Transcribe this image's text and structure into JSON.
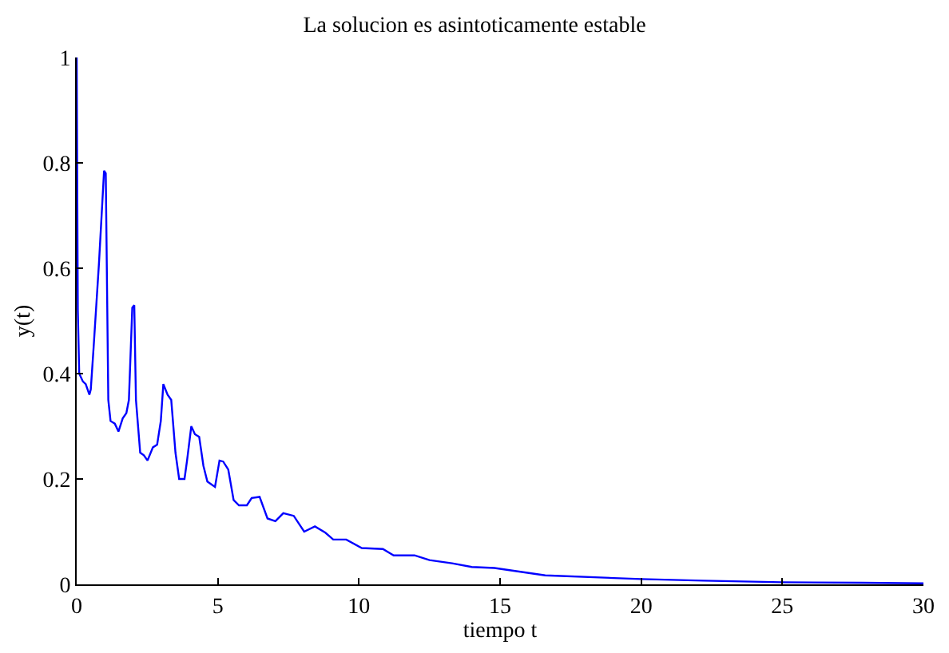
{
  "chart_data": {
    "type": "line",
    "title": "La solucion es asintoticamente estable",
    "xlabel": "tiempo t",
    "ylabel": "y(t)",
    "series": [
      {
        "color": "#0000ff",
        "x": [
          0,
          0.04,
          0.09,
          0.22,
          0.32,
          0.45,
          0.5,
          0.6,
          0.79,
          0.97,
          1.03,
          1.12,
          1.2,
          1.35,
          1.48,
          1.63,
          1.76,
          1.85,
          1.97,
          2.04,
          2.1,
          2.25,
          2.38,
          2.51,
          2.7,
          2.85,
          2.98,
          3.07,
          3.22,
          3.35,
          3.5,
          3.63,
          3.82,
          3.91,
          4.06,
          4.19,
          4.34,
          4.49,
          4.63,
          4.9,
          5.06,
          5.19,
          5.37,
          5.56,
          5.75,
          6.03,
          6.2,
          6.48,
          6.76,
          7.04,
          7.32,
          7.69,
          8.06,
          8.44,
          8.81,
          9.09,
          9.55,
          10.1,
          10.85,
          11.23,
          11.97,
          12.5,
          13.3,
          14.0,
          14.8,
          16.6,
          20.0,
          22.2,
          25.0,
          27.8,
          30
        ],
        "values": [
          1.0,
          0.52,
          0.4,
          0.385,
          0.38,
          0.36,
          0.37,
          0.45,
          0.61,
          0.785,
          0.78,
          0.35,
          0.31,
          0.305,
          0.29,
          0.315,
          0.325,
          0.35,
          0.525,
          0.53,
          0.35,
          0.25,
          0.245,
          0.235,
          0.26,
          0.265,
          0.31,
          0.38,
          0.36,
          0.35,
          0.25,
          0.2,
          0.2,
          0.235,
          0.3,
          0.285,
          0.28,
          0.225,
          0.195,
          0.185,
          0.235,
          0.233,
          0.218,
          0.16,
          0.15,
          0.15,
          0.164,
          0.166,
          0.125,
          0.12,
          0.135,
          0.13,
          0.1,
          0.11,
          0.098,
          0.085,
          0.085,
          0.069,
          0.067,
          0.055,
          0.055,
          0.046,
          0.04,
          0.033,
          0.031,
          0.017,
          0.01,
          0.007,
          0.004,
          0.003,
          0.002
        ]
      }
    ],
    "xlim": [
      0,
      30
    ],
    "xticks": [
      0,
      5,
      10,
      15,
      20,
      25,
      30
    ],
    "ylim": [
      0,
      1
    ],
    "yticks": [
      0,
      0.2,
      0.4,
      0.6,
      0.8,
      1
    ]
  }
}
